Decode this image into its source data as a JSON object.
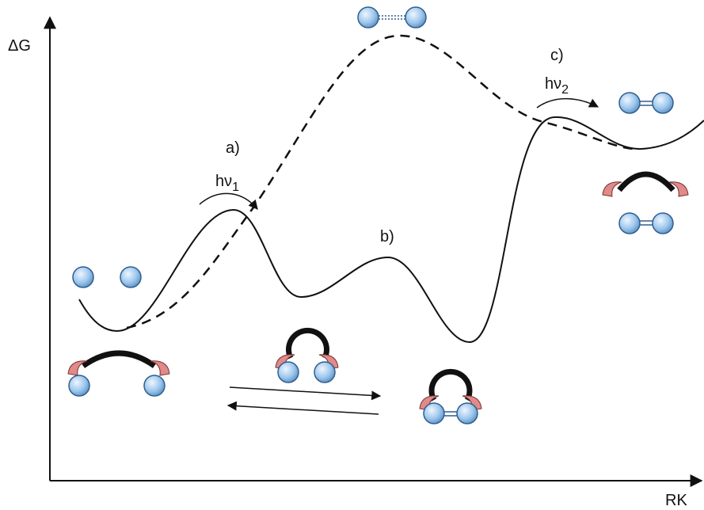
{
  "axes": {
    "y_label": "ΔG",
    "x_label": "RK"
  },
  "labels": {
    "a": {
      "label": "a)",
      "symbol": "hν",
      "subscript": "1"
    },
    "b": {
      "label": "b)"
    },
    "c": {
      "label": "c)",
      "symbol": "hν",
      "subscript": "2"
    }
  }
}
